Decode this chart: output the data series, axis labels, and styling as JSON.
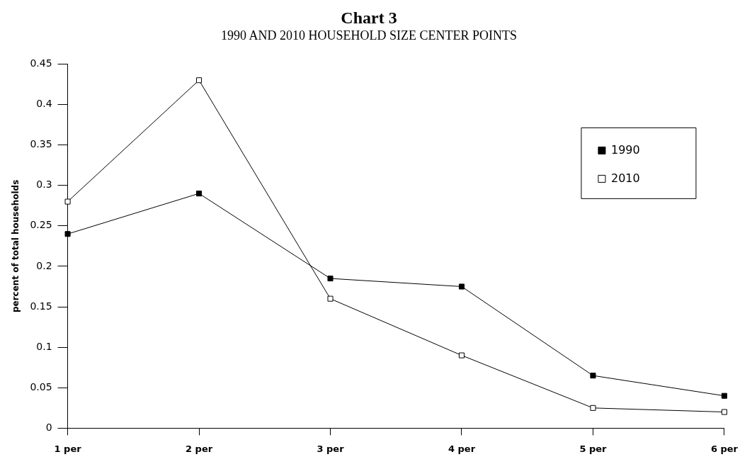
{
  "chart_data": {
    "type": "line",
    "title": "Chart 3",
    "subtitle": "1990 AND 2010 HOUSEHOLD SIZE CENTER POINTS",
    "ylabel": "percent of total households",
    "categories": [
      "1 per",
      "2 per",
      "3 per",
      "4 per",
      "5 per",
      "6 per"
    ],
    "series": [
      {
        "name": "1990",
        "color": "#000000",
        "values": [
          0.24,
          0.29,
          0.185,
          0.175,
          0.065,
          0.04
        ]
      },
      {
        "name": "2010",
        "color": "#000000",
        "values": [
          0.28,
          0.43,
          0.16,
          0.09,
          0.025,
          0.02
        ]
      }
    ],
    "ylim": [
      0,
      0.45
    ],
    "yticks": [
      0,
      0.05,
      0.1,
      0.15,
      0.2,
      0.25,
      0.3,
      0.35,
      0.4,
      0.45
    ],
    "grid": false,
    "legend": "top right",
    "marker": "square",
    "line_style": "solid"
  }
}
